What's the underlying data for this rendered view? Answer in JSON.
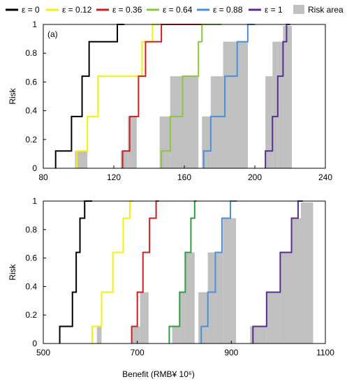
{
  "legend": {
    "items": [
      {
        "label": "ε = 0",
        "color": "#000000",
        "kind": "line"
      },
      {
        "label": "ε = 0.12",
        "color": "#f2f20a",
        "kind": "line"
      },
      {
        "label": "ε = 0.36",
        "color": "#cc1f1f",
        "kind": "line"
      },
      {
        "label": "ε = 0.64",
        "color": "#8cc63f",
        "kind": "line"
      },
      {
        "label": "ε = 0.88",
        "color": "#4a90d9",
        "kind": "line"
      },
      {
        "label": "ε = 1",
        "color": "#5b2c8f",
        "kind": "line"
      },
      {
        "label": "Risk area",
        "color": "#c0c0c0",
        "kind": "patch"
      }
    ]
  },
  "chart_data": [
    {
      "type": "line",
      "panel_label": "(a)",
      "xlabel": "",
      "ylabel": "Risk",
      "xlim": [
        80,
        240
      ],
      "ylim": [
        0,
        1
      ],
      "xticks": [
        "80",
        "120",
        "160",
        "200",
        "240"
      ],
      "yticks": [
        "0",
        "0.2",
        "0.4",
        "0.6",
        "0.8",
        "1"
      ],
      "risk_levels": [
        0,
        0.12,
        0.36,
        0.64,
        0.88,
        1.0
      ],
      "series": [
        {
          "name": "ε = 0",
          "color": "#000000",
          "x": [
            87,
            96,
            102,
            106,
            122,
            126
          ]
        },
        {
          "name": "ε = 0.12",
          "color": "#f2f20a",
          "x": [
            99,
            105,
            111,
            136,
            142,
            146
          ]
        },
        {
          "name": "ε = 0.36",
          "color": "#cc1f1f",
          "x": [
            125,
            129,
            134,
            138,
            147,
            170
          ]
        },
        {
          "name": "ε = 0.64",
          "color": "#8cc63f",
          "x": [
            147,
            152,
            159,
            168,
            170,
            181
          ]
        },
        {
          "name": "ε = 0.88",
          "color": "#4a90d9",
          "x": [
            171,
            175,
            183,
            190,
            196,
            200
          ]
        },
        {
          "name": "ε = 1",
          "color": "#5b2c8f",
          "x": [
            206,
            210,
            213,
            216,
            218,
            220
          ]
        }
      ],
      "risk_area": [
        [
          {
            "x0": 98,
            "x1": 105,
            "y": 0.12
          }
        ],
        [
          {
            "x0": 124,
            "x1": 128,
            "y": 0.12
          },
          {
            "x0": 128,
            "x1": 133,
            "y": 0.36
          }
        ],
        [
          {
            "x0": 146,
            "x1": 152,
            "y": 0.36
          },
          {
            "x0": 152,
            "x1": 159,
            "y": 0.64
          },
          {
            "x0": 159,
            "x1": 168,
            "y": 0.64
          }
        ],
        [
          {
            "x0": 170,
            "x1": 175,
            "y": 0.36
          },
          {
            "x0": 175,
            "x1": 182,
            "y": 0.64
          },
          {
            "x0": 182,
            "x1": 196,
            "y": 0.88
          }
        ],
        [
          {
            "x0": 206,
            "x1": 210,
            "y": 0.64
          },
          {
            "x0": 210,
            "x1": 213,
            "y": 0.88
          },
          {
            "x0": 213,
            "x1": 216,
            "y": 0.88
          },
          {
            "x0": 216,
            "x1": 221,
            "y": 0.99
          }
        ]
      ]
    },
    {
      "type": "line",
      "panel_label": "",
      "xlabel": "Benefit (RMB¥ 10⁶)",
      "ylabel": "Risk",
      "xlim": [
        500,
        1100
      ],
      "ylim": [
        0,
        1
      ],
      "xticks": [
        "500",
        "700",
        "900",
        "1100"
      ],
      "yticks": [
        "0",
        "0.2",
        "0.4",
        "0.6",
        "0.8",
        "1"
      ],
      "risk_levels": [
        0,
        0.12,
        0.36,
        0.64,
        0.88,
        1.0
      ],
      "series": [
        {
          "name": "ε = 0",
          "color": "#000000",
          "x": [
            535,
            562,
            570,
            578,
            588,
            604
          ]
        },
        {
          "name": "ε = 0.12",
          "color": "#f2f20a",
          "x": [
            604,
            624,
            648,
            670,
            684,
            690
          ]
        },
        {
          "name": "ε = 0.36",
          "color": "#cc1f1f",
          "x": [
            688,
            700,
            712,
            726,
            740,
            746
          ]
        },
        {
          "name": "ε = 0.64",
          "color": "#2e9e3e",
          "x": [
            768,
            790,
            802,
            814,
            822,
            826
          ]
        },
        {
          "name": "ε = 0.88",
          "color": "#4a90d9",
          "x": [
            836,
            850,
            866,
            880,
            898,
            912
          ]
        },
        {
          "name": "ε = 1",
          "color": "#5b2c8f",
          "x": [
            946,
            975,
            1004,
            1028,
            1042,
            1052
          ]
        }
      ],
      "risk_area": [
        [
          {
            "x0": 614,
            "x1": 624,
            "y": 0.12
          }
        ],
        [
          {
            "x0": 688,
            "x1": 706,
            "y": 0.12
          },
          {
            "x0": 706,
            "x1": 724,
            "y": 0.36
          }
        ],
        [
          {
            "x0": 774,
            "x1": 790,
            "y": 0.12
          },
          {
            "x0": 790,
            "x1": 802,
            "y": 0.36
          },
          {
            "x0": 802,
            "x1": 822,
            "y": 0.64
          }
        ],
        [
          {
            "x0": 830,
            "x1": 850,
            "y": 0.36
          },
          {
            "x0": 850,
            "x1": 866,
            "y": 0.64
          },
          {
            "x0": 866,
            "x1": 882,
            "y": 0.64
          },
          {
            "x0": 882,
            "x1": 910,
            "y": 0.88
          }
        ],
        [
          {
            "x0": 940,
            "x1": 975,
            "y": 0.12
          },
          {
            "x0": 975,
            "x1": 1004,
            "y": 0.36
          },
          {
            "x0": 1004,
            "x1": 1028,
            "y": 0.64
          },
          {
            "x0": 1028,
            "x1": 1048,
            "y": 0.88
          },
          {
            "x0": 1048,
            "x1": 1074,
            "y": 0.99
          }
        ]
      ]
    }
  ]
}
